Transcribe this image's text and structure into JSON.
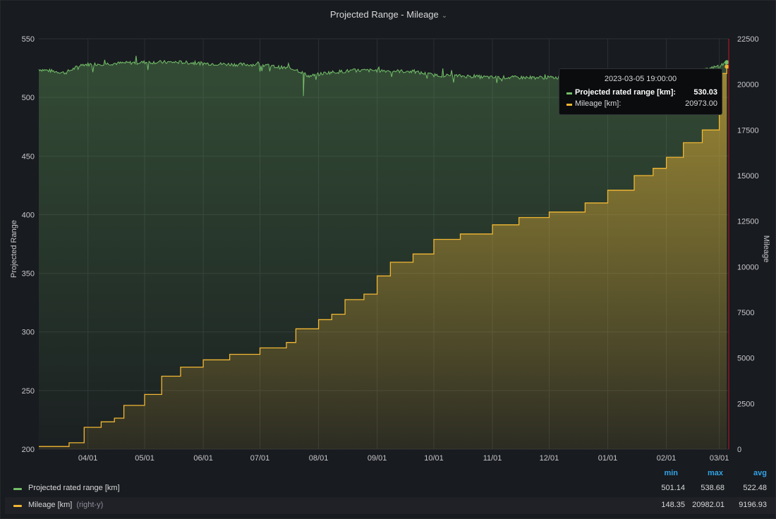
{
  "panel": {
    "title": "Projected Range - Mileage",
    "chevron": "⌄"
  },
  "colors": {
    "range": "#73bf69",
    "mileage": "#f2b733",
    "cursor": "#c4162a"
  },
  "chart_data": {
    "type": "area",
    "x_axis": {
      "type": "time",
      "ticks": [
        "04/01",
        "05/01",
        "06/01",
        "07/01",
        "08/01",
        "09/01",
        "10/01",
        "11/01",
        "12/01",
        "01/01",
        "02/01",
        "03/01"
      ],
      "range": [
        "2022-03-06",
        "2023-03-06"
      ]
    },
    "y_left": {
      "label": "Projected Range",
      "min": 200,
      "max": 550,
      "ticks": [
        200,
        250,
        300,
        350,
        400,
        450,
        500,
        550
      ]
    },
    "y_right": {
      "label": "Mileage",
      "min": 0,
      "max": 22500,
      "ticks": [
        0,
        2500,
        5000,
        7500,
        10000,
        12500,
        15000,
        17500,
        20000,
        22500
      ]
    },
    "grid": true,
    "series": [
      {
        "name": "Projected rated range [km]",
        "axis": "left",
        "color": "#73bf69",
        "x": [
          "2022-03-06",
          "2022-03-20",
          "2022-03-29",
          "2022-04-15",
          "2022-05-01",
          "2022-05-20",
          "2022-06-01",
          "2022-06-20",
          "2022-07-01",
          "2022-07-10",
          "2022-07-20",
          "2022-07-27",
          "2022-08-05",
          "2022-08-20",
          "2022-09-01",
          "2022-09-20",
          "2022-10-01",
          "2022-10-20",
          "2022-11-01",
          "2022-11-20",
          "2022-12-01",
          "2022-12-20",
          "2023-01-01",
          "2023-01-20",
          "2023-02-01",
          "2023-02-15",
          "2023-03-01",
          "2023-03-05"
        ],
        "values": [
          524,
          521,
          528,
          529,
          530,
          530,
          529,
          528,
          528,
          526,
          524,
          518,
          521,
          523,
          523,
          522,
          519,
          518,
          517,
          517,
          517,
          517,
          518,
          519,
          519,
          520,
          527,
          530.03
        ]
      },
      {
        "name": "Mileage [km]",
        "axis": "right",
        "suffix": "(right-y)",
        "color": "#f2b733",
        "x": [
          "2022-03-06",
          "2022-03-18",
          "2022-03-22",
          "2022-03-30",
          "2022-04-08",
          "2022-04-15",
          "2022-04-20",
          "2022-05-01",
          "2022-05-10",
          "2022-05-20",
          "2022-06-01",
          "2022-06-15",
          "2022-07-01",
          "2022-07-15",
          "2022-07-20",
          "2022-08-01",
          "2022-08-08",
          "2022-08-15",
          "2022-08-25",
          "2022-09-01",
          "2022-09-08",
          "2022-09-20",
          "2022-10-01",
          "2022-10-15",
          "2022-11-01",
          "2022-11-15",
          "2022-12-01",
          "2022-12-20",
          "2023-01-01",
          "2023-01-15",
          "2023-01-25",
          "2023-02-01",
          "2023-02-10",
          "2023-02-20",
          "2023-03-01",
          "2023-03-05"
        ],
        "values": [
          148,
          148,
          350,
          1200,
          1500,
          1700,
          2400,
          3000,
          4000,
          4500,
          4900,
          5200,
          5550,
          5850,
          6600,
          7100,
          7400,
          8200,
          8500,
          9500,
          10250,
          10700,
          11500,
          11800,
          12300,
          12700,
          13000,
          13500,
          14200,
          15000,
          15400,
          16000,
          16800,
          17500,
          20600,
          20973
        ]
      }
    ]
  },
  "tooltip": {
    "time": "2023-03-05 19:00:00",
    "rows": [
      {
        "label": "Projected rated range [km]:",
        "value": "530.03"
      },
      {
        "label": "Mileage [km]:",
        "value": "20973.00"
      }
    ]
  },
  "legend": {
    "headers": {
      "min": "min",
      "max": "max",
      "avg": "avg"
    },
    "rows": [
      {
        "name": "Projected rated range [km]",
        "suffix": "",
        "min": "501.14",
        "max": "538.68",
        "avg": "522.48"
      },
      {
        "name": "Mileage [km]",
        "suffix": "(right-y)",
        "min": "148.35",
        "max": "20982.01",
        "avg": "9196.93"
      }
    ]
  }
}
